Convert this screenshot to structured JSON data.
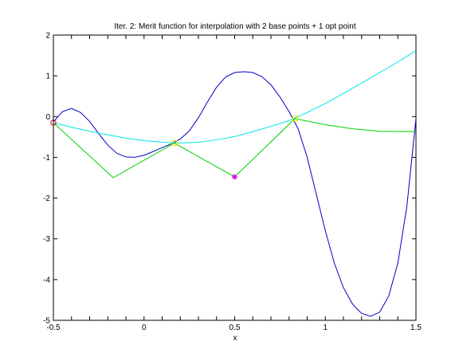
{
  "chart_data": {
    "type": "line",
    "title": "Iter. 2: Merit function for interpolation with 2 base points + 1 opt point",
    "xlabel": "x",
    "ylabel": "",
    "xlim": [
      -0.5,
      1.5
    ],
    "ylim": [
      -5,
      2
    ],
    "xticks": [
      -0.5,
      0,
      0.5,
      1,
      1.5
    ],
    "xtick_labels": [
      "-0.5",
      "0",
      "0.5",
      "1",
      "1.5"
    ],
    "yticks": [
      -5,
      -4,
      -3,
      -2,
      -1,
      0,
      1,
      2
    ],
    "ytick_labels": [
      "-5",
      "-4",
      "-3",
      "-2",
      "-1",
      "0",
      "1",
      "2"
    ],
    "grid": false,
    "series": [
      {
        "color": "#0000c8",
        "style": "line",
        "x": [
          -0.5,
          -0.45,
          -0.4,
          -0.35,
          -0.3,
          -0.25,
          -0.2,
          -0.15,
          -0.1,
          -0.05,
          0,
          0.05,
          0.1,
          0.15,
          0.2,
          0.25,
          0.3,
          0.35,
          0.4,
          0.45,
          0.5,
          0.55,
          0.6,
          0.65,
          0.7,
          0.75,
          0.8,
          0.85,
          0.9,
          0.95,
          1.0,
          1.05,
          1.1,
          1.15,
          1.2,
          1.25,
          1.3,
          1.35,
          1.4,
          1.45,
          1.5
        ],
        "y": [
          -0.13,
          0.12,
          0.2,
          0.1,
          -0.12,
          -0.42,
          -0.7,
          -0.9,
          -0.99,
          -1.0,
          -0.95,
          -0.86,
          -0.76,
          -0.67,
          -0.55,
          -0.35,
          -0.03,
          0.36,
          0.72,
          0.97,
          1.08,
          1.1,
          1.08,
          0.98,
          0.78,
          0.48,
          0.12,
          -0.3,
          -1.0,
          -1.9,
          -2.8,
          -3.6,
          -4.2,
          -4.6,
          -4.83,
          -4.9,
          -4.8,
          -4.4,
          -3.6,
          -2.2,
          -0.05
        ]
      },
      {
        "color": "#00e6e6",
        "style": "line",
        "x": [
          -0.5,
          -0.4,
          -0.3,
          -0.2,
          -0.1,
          0,
          0.1,
          0.2,
          0.3,
          0.4,
          0.5,
          0.6,
          0.7,
          0.8,
          0.9,
          1.0,
          1.1,
          1.2,
          1.3,
          1.4,
          1.5
        ],
        "y": [
          -0.15,
          -0.26,
          -0.36,
          -0.45,
          -0.53,
          -0.59,
          -0.63,
          -0.65,
          -0.63,
          -0.57,
          -0.49,
          -0.37,
          -0.24,
          -0.1,
          0.1,
          0.32,
          0.57,
          0.82,
          1.08,
          1.34,
          1.62
        ]
      },
      {
        "color": "#00d000",
        "style": "line",
        "x": [
          -0.5,
          -0.17,
          0.167,
          0.5,
          0.833,
          1.0,
          1.15,
          1.3,
          1.5
        ],
        "y": [
          -0.15,
          -1.5,
          -0.65,
          -1.48,
          -0.05,
          -0.2,
          -0.3,
          -0.36,
          -0.37
        ]
      }
    ],
    "markers": [
      {
        "x": -0.5,
        "y": -0.15,
        "shape": "circle",
        "color": "#cc0000"
      },
      {
        "x": 0.167,
        "y": -0.65,
        "shape": "square",
        "color": "#e6e600"
      },
      {
        "x": 0.833,
        "y": -0.05,
        "shape": "square",
        "color": "#e6e600"
      },
      {
        "x": 0.5,
        "y": -1.48,
        "shape": "star",
        "color": "#e600e6"
      }
    ]
  }
}
